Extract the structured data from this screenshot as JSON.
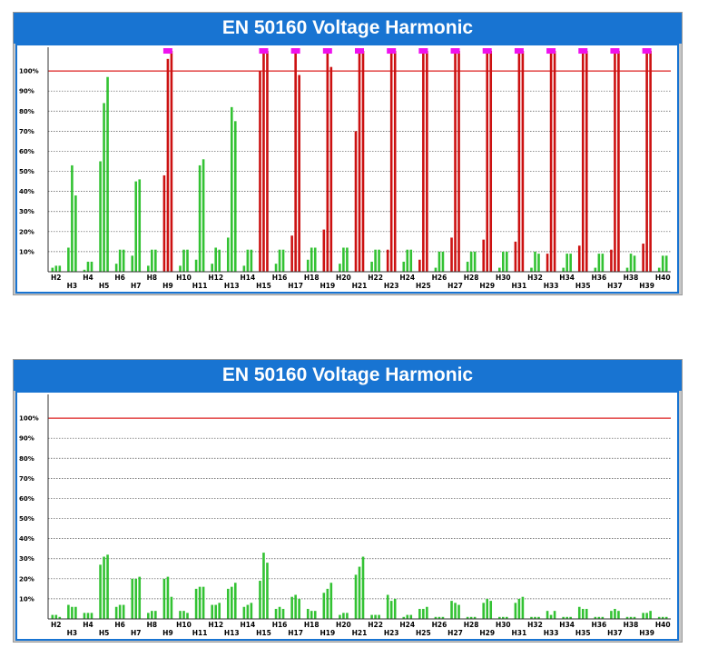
{
  "chart_data": [
    {
      "type": "bar",
      "title": "EN 50160 Voltage Harmonic",
      "ylim": [
        0,
        110
      ],
      "yticks": [
        "10%",
        "20%",
        "30%",
        "40%",
        "50%",
        "60%",
        "70%",
        "80%",
        "90%",
        "100%"
      ],
      "limit_line": 100,
      "categories": [
        "H2",
        "H3",
        "H4",
        "H5",
        "H6",
        "H7",
        "H8",
        "H9",
        "H10",
        "H11",
        "H12",
        "H13",
        "H14",
        "H15",
        "H16",
        "H17",
        "H18",
        "H19",
        "H20",
        "H21",
        "H22",
        "H23",
        "H24",
        "H25",
        "H26",
        "H27",
        "H28",
        "H29",
        "H30",
        "H31",
        "H32",
        "H33",
        "H34",
        "H35",
        "H36",
        "H37",
        "H38",
        "H39",
        "H40"
      ],
      "series": [
        {
          "values": [
            2,
            12,
            1,
            55,
            4,
            8,
            3,
            48,
            3,
            6,
            4,
            17,
            3,
            100,
            4,
            18,
            6,
            21,
            4,
            70,
            5,
            11,
            5,
            6,
            2,
            17,
            5,
            16,
            2,
            15,
            2,
            9,
            2,
            13,
            2,
            11,
            2,
            14,
            2
          ]
        },
        {
          "values": [
            3,
            53,
            5,
            84,
            11,
            45,
            11,
            106,
            11,
            53,
            12,
            82,
            11,
            110,
            11,
            110,
            12,
            110,
            12,
            110,
            11,
            110,
            11,
            110,
            10,
            110,
            10,
            110,
            10,
            110,
            10,
            110,
            9,
            110,
            9,
            110,
            9,
            110,
            8
          ]
        },
        {
          "values": [
            3,
            38,
            5,
            97,
            11,
            46,
            11,
            110,
            11,
            56,
            11,
            75,
            11,
            110,
            11,
            98,
            12,
            102,
            12,
            110,
            11,
            110,
            11,
            110,
            10,
            110,
            10,
            110,
            10,
            110,
            9,
            110,
            9,
            110,
            9,
            110,
            8,
            110,
            8
          ]
        }
      ],
      "overflow_markers": [
        "H9",
        "H15",
        "H17",
        "H19",
        "H21",
        "H23",
        "H25",
        "H27",
        "H29",
        "H31",
        "H33",
        "H35",
        "H37",
        "H39"
      ],
      "colors": {
        "ok": "#33c233",
        "over": "#cc1111",
        "marker": "#ee11ee",
        "limit": "#dd2222",
        "frame": "#1874d2"
      }
    },
    {
      "type": "bar",
      "title": "EN 50160 Voltage Harmonic",
      "ylim": [
        0,
        110
      ],
      "yticks": [
        "10%",
        "20%",
        "30%",
        "40%",
        "50%",
        "60%",
        "70%",
        "80%",
        "90%",
        "100%"
      ],
      "limit_line": 100,
      "categories": [
        "H2",
        "H3",
        "H4",
        "H5",
        "H6",
        "H7",
        "H8",
        "H9",
        "H10",
        "H11",
        "H12",
        "H13",
        "H14",
        "H15",
        "H16",
        "H17",
        "H18",
        "H19",
        "H20",
        "H21",
        "H22",
        "H23",
        "H24",
        "H25",
        "H26",
        "H27",
        "H28",
        "H29",
        "H30",
        "H31",
        "H32",
        "H33",
        "H34",
        "H35",
        "H36",
        "H37",
        "H38",
        "H39",
        "H40"
      ],
      "series": [
        {
          "values": [
            2,
            7,
            3,
            27,
            6,
            20,
            3,
            20,
            4,
            15,
            7,
            15,
            6,
            19,
            5,
            11,
            5,
            13,
            2,
            22,
            2,
            12,
            1,
            5,
            1,
            9,
            1,
            8,
            1,
            8,
            1,
            4,
            1,
            6,
            1,
            4,
            1,
            3,
            1
          ]
        },
        {
          "values": [
            2,
            6,
            3,
            31,
            7,
            20,
            4,
            21,
            4,
            16,
            7,
            16,
            7,
            33,
            6,
            12,
            4,
            15,
            3,
            26,
            2,
            9,
            2,
            5,
            1,
            8,
            1,
            10,
            1,
            10,
            1,
            2,
            1,
            5,
            1,
            5,
            1,
            3,
            1
          ]
        },
        {
          "values": [
            1,
            6,
            3,
            32,
            7,
            21,
            4,
            11,
            3,
            16,
            8,
            18,
            8,
            28,
            5,
            10,
            4,
            18,
            3,
            31,
            2,
            10,
            2,
            6,
            1,
            7,
            1,
            9,
            1,
            11,
            1,
            4,
            1,
            5,
            1,
            4,
            1,
            4,
            1
          ]
        }
      ],
      "overflow_markers": [],
      "colors": {
        "ok": "#33c233",
        "over": "#cc1111",
        "marker": "#ee11ee",
        "limit": "#dd2222",
        "frame": "#1874d2"
      }
    }
  ]
}
